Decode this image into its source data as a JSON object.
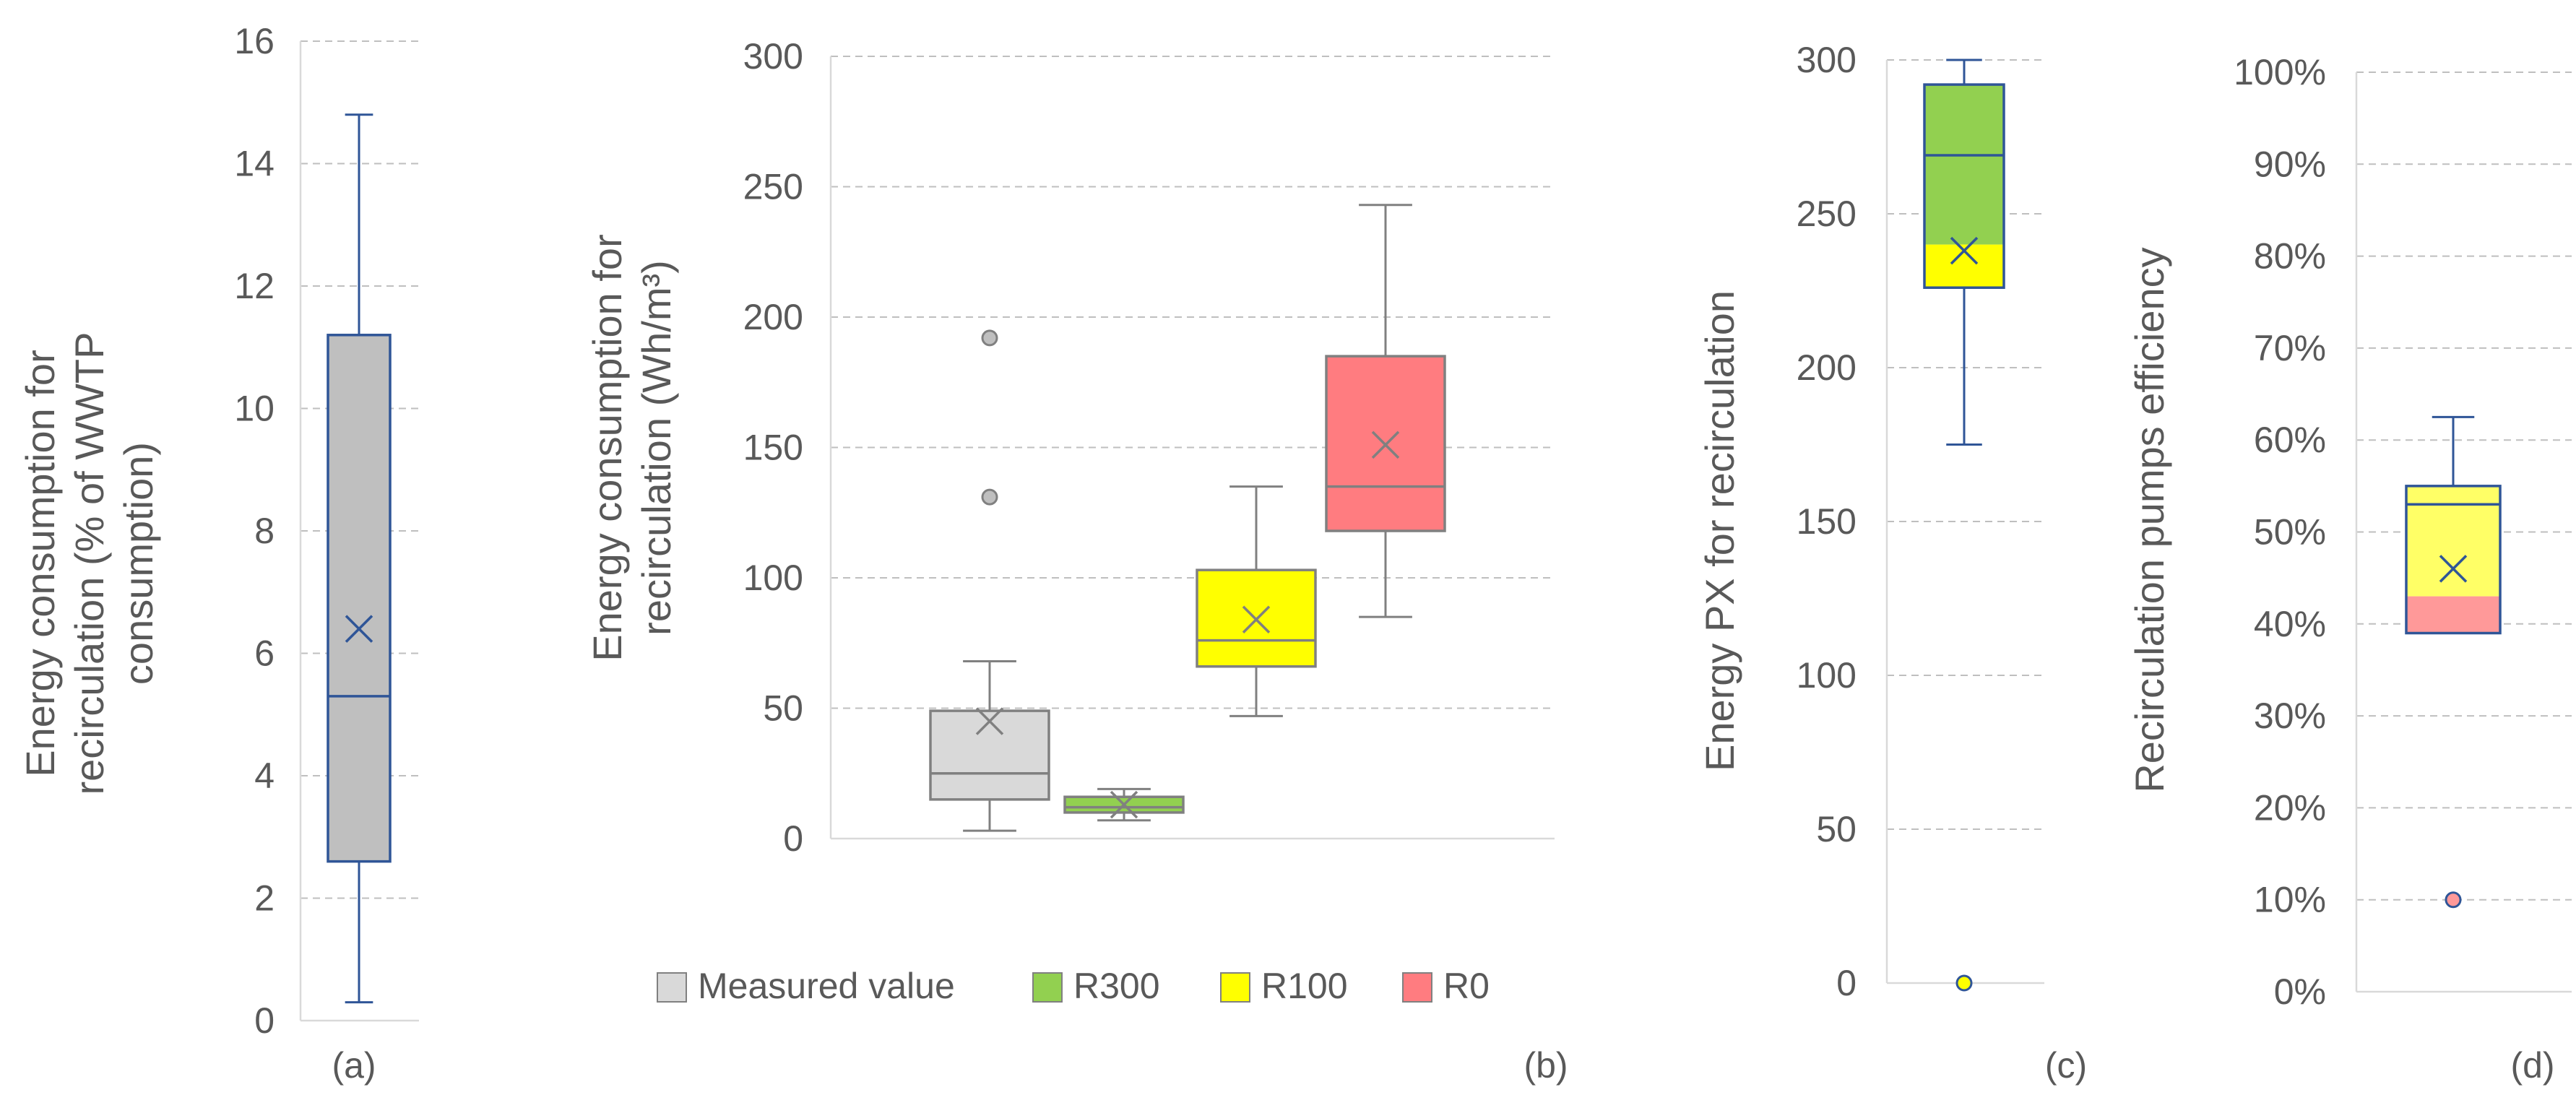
{
  "chart_data": [
    {
      "type": "box",
      "panel_label": "(a)",
      "ylabel_lines": [
        "Energy consumption for",
        "recirculation (% of WWTP",
        "consumption)"
      ],
      "ylim": [
        0,
        16
      ],
      "yticks": [
        "0",
        "2",
        "4",
        "6",
        "8",
        "10",
        "12",
        "14",
        "16"
      ],
      "grid": true,
      "colors": {
        "box_fill": "#BFBFBF",
        "box_line": "#2F5597",
        "mean_marker": "#2F5597"
      },
      "series": [
        {
          "min": 0.3,
          "q1": 2.6,
          "median": 5.3,
          "q3": 11.2,
          "max": 14.8,
          "mean": 6.4,
          "outliers": []
        }
      ]
    },
    {
      "type": "box",
      "panel_label": "(b)",
      "ylabel_lines": [
        "Energy consumption for",
        "recirculation (Wh/m³)"
      ],
      "ylim": [
        0,
        300
      ],
      "yticks": [
        "0",
        "50",
        "100",
        "150",
        "200",
        "250",
        "300"
      ],
      "grid": true,
      "legend_position": "bottom",
      "series": [
        {
          "name": "Measured value",
          "color": "#D9D9D9",
          "line": "#808080",
          "min": 3,
          "q1": 15,
          "median": 25,
          "q3": 49,
          "max": 68,
          "mean": 45,
          "outliers": [
            131,
            192
          ]
        },
        {
          "name": "R300",
          "color": "#92D050",
          "line": "#808080",
          "min": 7,
          "q1": 10,
          "median": 12,
          "q3": 16,
          "max": 19,
          "mean": 13,
          "outliers": []
        },
        {
          "name": "R100",
          "color": "#FFFF00",
          "line": "#808080",
          "min": 47,
          "q1": 66,
          "median": 76,
          "q3": 103,
          "max": 135,
          "mean": 84,
          "outliers": []
        },
        {
          "name": "R0",
          "color": "#FF7C80",
          "line": "#808080",
          "min": 85,
          "q1": 118,
          "median": 135,
          "q3": 185,
          "max": 243,
          "mean": 151,
          "outliers": []
        }
      ]
    },
    {
      "type": "box",
      "panel_label": "(c)",
      "ylabel_lines": [
        "Energy PX for recirculation"
      ],
      "ylim": [
        0,
        300
      ],
      "yticks": [
        "0",
        "50",
        "100",
        "150",
        "200",
        "250",
        "300"
      ],
      "grid": true,
      "colors": {
        "box_line": "#2F5597",
        "upper_fill": "#92D050",
        "lower_fill": "#FFFF00",
        "split_value": 240,
        "mean_marker": "#2F5597"
      },
      "series": [
        {
          "min": 175,
          "q1": 226,
          "median": 269,
          "q3": 292,
          "max": 300,
          "mean": 238,
          "outliers": [
            0
          ]
        }
      ]
    },
    {
      "type": "box",
      "panel_label": "(d)",
      "ylabel_lines": [
        "Recirculation pumps efficiency"
      ],
      "ylim": [
        0,
        100
      ],
      "yticks": [
        "0%",
        "10%",
        "20%",
        "30%",
        "40%",
        "50%",
        "60%",
        "70%",
        "80%",
        "90%",
        "100%"
      ],
      "grid": true,
      "colors": {
        "box_line": "#2F5597",
        "upper_fill": "#FFFF66",
        "lower_fill": "#FF9999",
        "split_value": 43,
        "mean_marker": "#2F5597"
      },
      "series": [
        {
          "min": 39,
          "q1": 39,
          "median": 53,
          "q3": 55,
          "max": 62.5,
          "mean": 46,
          "outliers": [
            10
          ]
        }
      ]
    }
  ]
}
